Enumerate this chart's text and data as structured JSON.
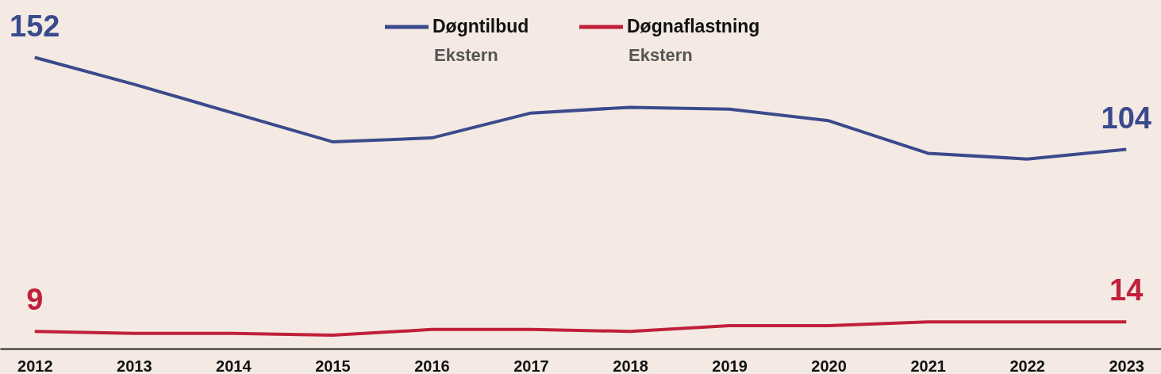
{
  "chart_data": {
    "type": "line",
    "categories": [
      "2012",
      "2013",
      "2014",
      "2015",
      "2016",
      "2017",
      "2018",
      "2019",
      "2020",
      "2021",
      "2022",
      "2023"
    ],
    "series": [
      {
        "name": "Døgntilbud\nEkstern",
        "color": "#3a4a8c",
        "values": [
          152,
          138,
          123,
          108,
          110,
          123,
          126,
          125,
          119,
          102,
          99,
          104
        ],
        "value_labels": [
          "152",
          null,
          null,
          null,
          null,
          null,
          null,
          null,
          null,
          null,
          null,
          "104"
        ]
      },
      {
        "name": "Døgnaflastning\nEkstern",
        "color": "#c0203a",
        "values": [
          9,
          8,
          8,
          7,
          10,
          10,
          9,
          12,
          12,
          14,
          14,
          14
        ],
        "value_labels": [
          "9",
          null,
          null,
          null,
          null,
          null,
          null,
          null,
          null,
          null,
          null,
          "14"
        ]
      }
    ],
    "ylim": [
      0,
      182
    ],
    "tick_labels": "x",
    "grid": false,
    "legend": "top",
    "marker": "none",
    "line_style": "solid"
  }
}
